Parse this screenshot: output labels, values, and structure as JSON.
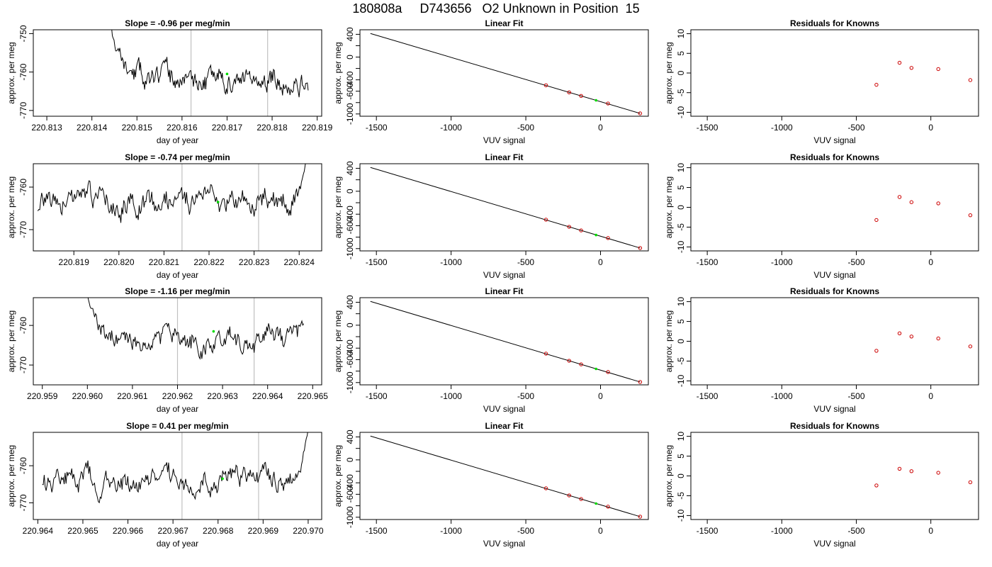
{
  "page_title": "180808a     D743656   O2 Unknown in Position  15",
  "colors": {
    "trace": "#000000",
    "vline": "#c0c0c0",
    "unknown": "#00dd00",
    "knowns": "#cc0000"
  },
  "chart_data": [
    {
      "type": "line",
      "title": "Slope =  -0.96  per meg/min",
      "xlabel": "day of year",
      "ylabel": "approx. per meg",
      "xlim": [
        220.8127,
        220.8191
      ],
      "ylim": [
        -771.5,
        -749.0
      ],
      "xticks": [
        220.813,
        220.814,
        220.815,
        220.816,
        220.817,
        220.818,
        220.819
      ],
      "xtick_labels": [
        "220.813",
        "220.814",
        "220.815",
        "220.816",
        "220.817",
        "220.818",
        "220.819"
      ],
      "yticks": [
        -770,
        -760,
        -750
      ],
      "ytick_labels": [
        "-770",
        "-760",
        "-750"
      ],
      "vlines": [
        220.8162,
        220.8179
      ],
      "unknown_point": {
        "x": 220.817,
        "y": -760.5
      },
      "series": [
        {
          "x_start": 220.8144,
          "x_end": 220.8188,
          "n": 241,
          "seed": 11,
          "base": -762.3,
          "amp": 2.4,
          "approach": "start",
          "approach_to": -745,
          "approach_x": 220.8145
        }
      ]
    },
    {
      "type": "line",
      "title": "Linear Fit",
      "xlabel": "VUV signal",
      "ylabel": "approx. per meg",
      "xlim": [
        -1610,
        320
      ],
      "ylim": [
        -1040,
        480
      ],
      "xticks": [
        -1500,
        -1000,
        -500,
        0
      ],
      "xtick_labels": [
        "-1500",
        "-1000",
        "-500",
        "0"
      ],
      "yticks": [
        -1000,
        -800,
        -600,
        -400,
        -200,
        0,
        200,
        400
      ],
      "ytick_labels": [
        "-1000",
        "",
        "-600",
        "-400",
        "",
        "0",
        "",
        "400"
      ],
      "fit_line": {
        "x": [
          -1540,
          265
        ],
        "y": [
          415,
          -990
        ]
      },
      "knowns": [
        {
          "x": -365,
          "y": -496
        },
        {
          "x": -210,
          "y": -620
        },
        {
          "x": -130,
          "y": -683
        },
        {
          "x": 50,
          "y": -816
        },
        {
          "x": 265,
          "y": -990
        }
      ],
      "unknown_point": {
        "x": -30,
        "y": -760
      }
    },
    {
      "type": "scatter",
      "title": "Residuals for Knowns",
      "xlabel": "VUV signal",
      "ylabel": "approx. per meg",
      "xlim": [
        -1610,
        320
      ],
      "ylim": [
        -11,
        11
      ],
      "xticks": [
        -1500,
        -1000,
        -500,
        0
      ],
      "xtick_labels": [
        "-1500",
        "-1000",
        "-500",
        "0"
      ],
      "yticks": [
        -10,
        -5,
        0,
        5,
        10
      ],
      "ytick_labels": [
        "-10",
        "-5",
        "0",
        "5",
        "10"
      ],
      "knowns": [
        {
          "x": -365,
          "y": -3.0
        },
        {
          "x": -210,
          "y": 2.6
        },
        {
          "x": -130,
          "y": 1.3
        },
        {
          "x": 50,
          "y": 1.0
        },
        {
          "x": 265,
          "y": -1.8
        }
      ]
    },
    {
      "type": "line",
      "title": "Slope =  -0.74  per meg/min",
      "xlabel": "day of year",
      "ylabel": "approx. per meg",
      "xlim": [
        220.8181,
        220.8245
      ],
      "ylim": [
        -775.0,
        -754.5
      ],
      "xticks": [
        220.819,
        220.82,
        220.821,
        220.822,
        220.823,
        220.824
      ],
      "xtick_labels": [
        "220.819",
        "220.820",
        "220.821",
        "220.822",
        "220.823",
        "220.824"
      ],
      "yticks": [
        -770,
        -760
      ],
      "ytick_labels": [
        "-770",
        "-760"
      ],
      "vlines": [
        220.8214,
        220.8231
      ],
      "unknown_point": {
        "x": 220.8222,
        "y": -763.5
      },
      "series": [
        {
          "x_start": 220.8182,
          "x_end": 220.8242,
          "n": 281,
          "seed": 23,
          "base": -763.5,
          "amp": 2.4,
          "approach": "end",
          "approach_to": -752,
          "approach_x": 220.8241
        }
      ]
    },
    {
      "type": "line",
      "title": "Linear Fit",
      "xlabel": "VUV signal",
      "ylabel": "approx. per meg",
      "xlim": [
        -1610,
        320
      ],
      "ylim": [
        -1040,
        480
      ],
      "xticks": [
        -1500,
        -1000,
        -500,
        0
      ],
      "xtick_labels": [
        "-1500",
        "-1000",
        "-500",
        "0"
      ],
      "yticks": [
        -1000,
        -800,
        -600,
        -400,
        -200,
        0,
        200,
        400
      ],
      "ytick_labels": [
        "-1000",
        "",
        "-600",
        "-400",
        "",
        "0",
        "",
        "400"
      ],
      "fit_line": {
        "x": [
          -1540,
          265
        ],
        "y": [
          415,
          -990
        ]
      },
      "knowns": [
        {
          "x": -365,
          "y": -496
        },
        {
          "x": -210,
          "y": -620
        },
        {
          "x": -130,
          "y": -683
        },
        {
          "x": 50,
          "y": -816
        },
        {
          "x": 265,
          "y": -990
        }
      ],
      "unknown_point": {
        "x": -30,
        "y": -763
      }
    },
    {
      "type": "scatter",
      "title": "Residuals for Knowns",
      "xlabel": "VUV signal",
      "ylabel": "approx. per meg",
      "xlim": [
        -1610,
        320
      ],
      "ylim": [
        -11,
        11
      ],
      "xticks": [
        -1500,
        -1000,
        -500,
        0
      ],
      "xtick_labels": [
        "-1500",
        "-1000",
        "-500",
        "0"
      ],
      "yticks": [
        -10,
        -5,
        0,
        5,
        10
      ],
      "ytick_labels": [
        "-10",
        "-5",
        "0",
        "5",
        "10"
      ],
      "knowns": [
        {
          "x": -365,
          "y": -3.2
        },
        {
          "x": -210,
          "y": 2.6
        },
        {
          "x": -130,
          "y": 1.3
        },
        {
          "x": 50,
          "y": 1.0
        },
        {
          "x": 265,
          "y": -2.0
        }
      ]
    },
    {
      "type": "line",
      "title": "Slope =  -1.16  per meg/min",
      "xlabel": "day of year",
      "ylabel": "approx. per meg",
      "xlim": [
        220.9588,
        220.9652
      ],
      "ylim": [
        -775.0,
        -753.0
      ],
      "xticks": [
        220.959,
        220.96,
        220.961,
        220.962,
        220.963,
        220.964,
        220.965
      ],
      "xtick_labels": [
        "220.959",
        "220.960",
        "220.961",
        "220.962",
        "220.963",
        "220.964",
        "220.965"
      ],
      "yticks": [
        -770,
        -760
      ],
      "ytick_labels": [
        "-770",
        "-760"
      ],
      "vlines": [
        220.962,
        220.9637
      ],
      "unknown_point": {
        "x": 220.9628,
        "y": -761.5
      },
      "series": [
        {
          "x_start": 220.96,
          "x_end": 220.9648,
          "n": 241,
          "seed": 37,
          "base": -763.8,
          "amp": 2.3,
          "approach": "start",
          "approach_to": -752,
          "approach_x": 220.9607
        }
      ]
    },
    {
      "type": "line",
      "title": "Linear Fit",
      "xlabel": "VUV signal",
      "ylabel": "approx. per meg",
      "xlim": [
        -1610,
        320
      ],
      "ylim": [
        -1040,
        480
      ],
      "xticks": [
        -1500,
        -1000,
        -500,
        0
      ],
      "xtick_labels": [
        "-1500",
        "-1000",
        "-500",
        "0"
      ],
      "yticks": [
        -1000,
        -800,
        -600,
        -400,
        -200,
        0,
        200,
        400
      ],
      "ytick_labels": [
        "-1000",
        "",
        "-600",
        "-400",
        "",
        "0",
        "",
        "400"
      ],
      "fit_line": {
        "x": [
          -1540,
          265
        ],
        "y": [
          415,
          -990
        ]
      },
      "knowns": [
        {
          "x": -365,
          "y": -496
        },
        {
          "x": -210,
          "y": -620
        },
        {
          "x": -130,
          "y": -683
        },
        {
          "x": 50,
          "y": -816
        },
        {
          "x": 265,
          "y": -990
        }
      ],
      "unknown_point": {
        "x": -30,
        "y": -762
      }
    },
    {
      "type": "scatter",
      "title": "Residuals for Knowns",
      "xlabel": "VUV signal",
      "ylabel": "approx. per meg",
      "xlim": [
        -1610,
        320
      ],
      "ylim": [
        -11,
        11
      ],
      "xticks": [
        -1500,
        -1000,
        -500,
        0
      ],
      "xtick_labels": [
        "-1500",
        "-1000",
        "-500",
        "0"
      ],
      "yticks": [
        -10,
        -5,
        0,
        5,
        10
      ],
      "ytick_labels": [
        "-10",
        "-5",
        "0",
        "5",
        "10"
      ],
      "knowns": [
        {
          "x": -365,
          "y": -2.4
        },
        {
          "x": -210,
          "y": 2.0
        },
        {
          "x": -130,
          "y": 1.2
        },
        {
          "x": 50,
          "y": 0.7
        },
        {
          "x": 265,
          "y": -1.3
        }
      ]
    },
    {
      "type": "line",
      "title": "Slope =  0.41  per meg/min",
      "xlabel": "day of year",
      "ylabel": "approx. per meg",
      "xlim": [
        220.9639,
        220.9703
      ],
      "ylim": [
        -774.5,
        -751.0
      ],
      "xticks": [
        220.964,
        220.965,
        220.966,
        220.967,
        220.968,
        220.969,
        220.97
      ],
      "xtick_labels": [
        "220.964",
        "220.965",
        "220.966",
        "220.967",
        "220.968",
        "220.969",
        "220.970"
      ],
      "yticks": [
        -770,
        -760
      ],
      "ytick_labels": [
        "-770",
        "-760"
      ],
      "vlines": [
        220.9672,
        220.9689
      ],
      "unknown_point": {
        "x": 220.9681,
        "y": -763.5
      },
      "series": [
        {
          "x_start": 220.9641,
          "x_end": 220.97,
          "n": 281,
          "seed": 53,
          "base": -763.8,
          "amp": 2.4,
          "approach": "end",
          "approach_to": -750,
          "approach_x": 220.9699
        }
      ]
    },
    {
      "type": "line",
      "title": "Linear Fit",
      "xlabel": "VUV signal",
      "ylabel": "approx. per meg",
      "xlim": [
        -1610,
        320
      ],
      "ylim": [
        -1040,
        480
      ],
      "xticks": [
        -1500,
        -1000,
        -500,
        0
      ],
      "xtick_labels": [
        "-1500",
        "-1000",
        "-500",
        "0"
      ],
      "yticks": [
        -1000,
        -800,
        -600,
        -400,
        -200,
        0,
        200,
        400
      ],
      "ytick_labels": [
        "-1000",
        "",
        "-600",
        "-400",
        "",
        "0",
        "",
        "400"
      ],
      "fit_line": {
        "x": [
          -1540,
          265
        ],
        "y": [
          415,
          -990
        ]
      },
      "knowns": [
        {
          "x": -365,
          "y": -496
        },
        {
          "x": -210,
          "y": -620
        },
        {
          "x": -130,
          "y": -683
        },
        {
          "x": 50,
          "y": -816
        },
        {
          "x": 265,
          "y": -990
        }
      ],
      "unknown_point": {
        "x": -30,
        "y": -762
      }
    },
    {
      "type": "scatter",
      "title": "Residuals for Knowns",
      "xlabel": "VUV signal",
      "ylabel": "approx. per meg",
      "xlim": [
        -1610,
        320
      ],
      "ylim": [
        -11,
        11
      ],
      "xticks": [
        -1500,
        -1000,
        -500,
        0
      ],
      "xtick_labels": [
        "-1500",
        "-1000",
        "-500",
        "0"
      ],
      "yticks": [
        -10,
        -5,
        0,
        5,
        10
      ],
      "ytick_labels": [
        "-10",
        "-5",
        "0",
        "5",
        "10"
      ],
      "knowns": [
        {
          "x": -365,
          "y": -2.4
        },
        {
          "x": -210,
          "y": 1.8
        },
        {
          "x": -130,
          "y": 1.2
        },
        {
          "x": 50,
          "y": 0.8
        },
        {
          "x": 265,
          "y": -1.6
        }
      ]
    }
  ]
}
